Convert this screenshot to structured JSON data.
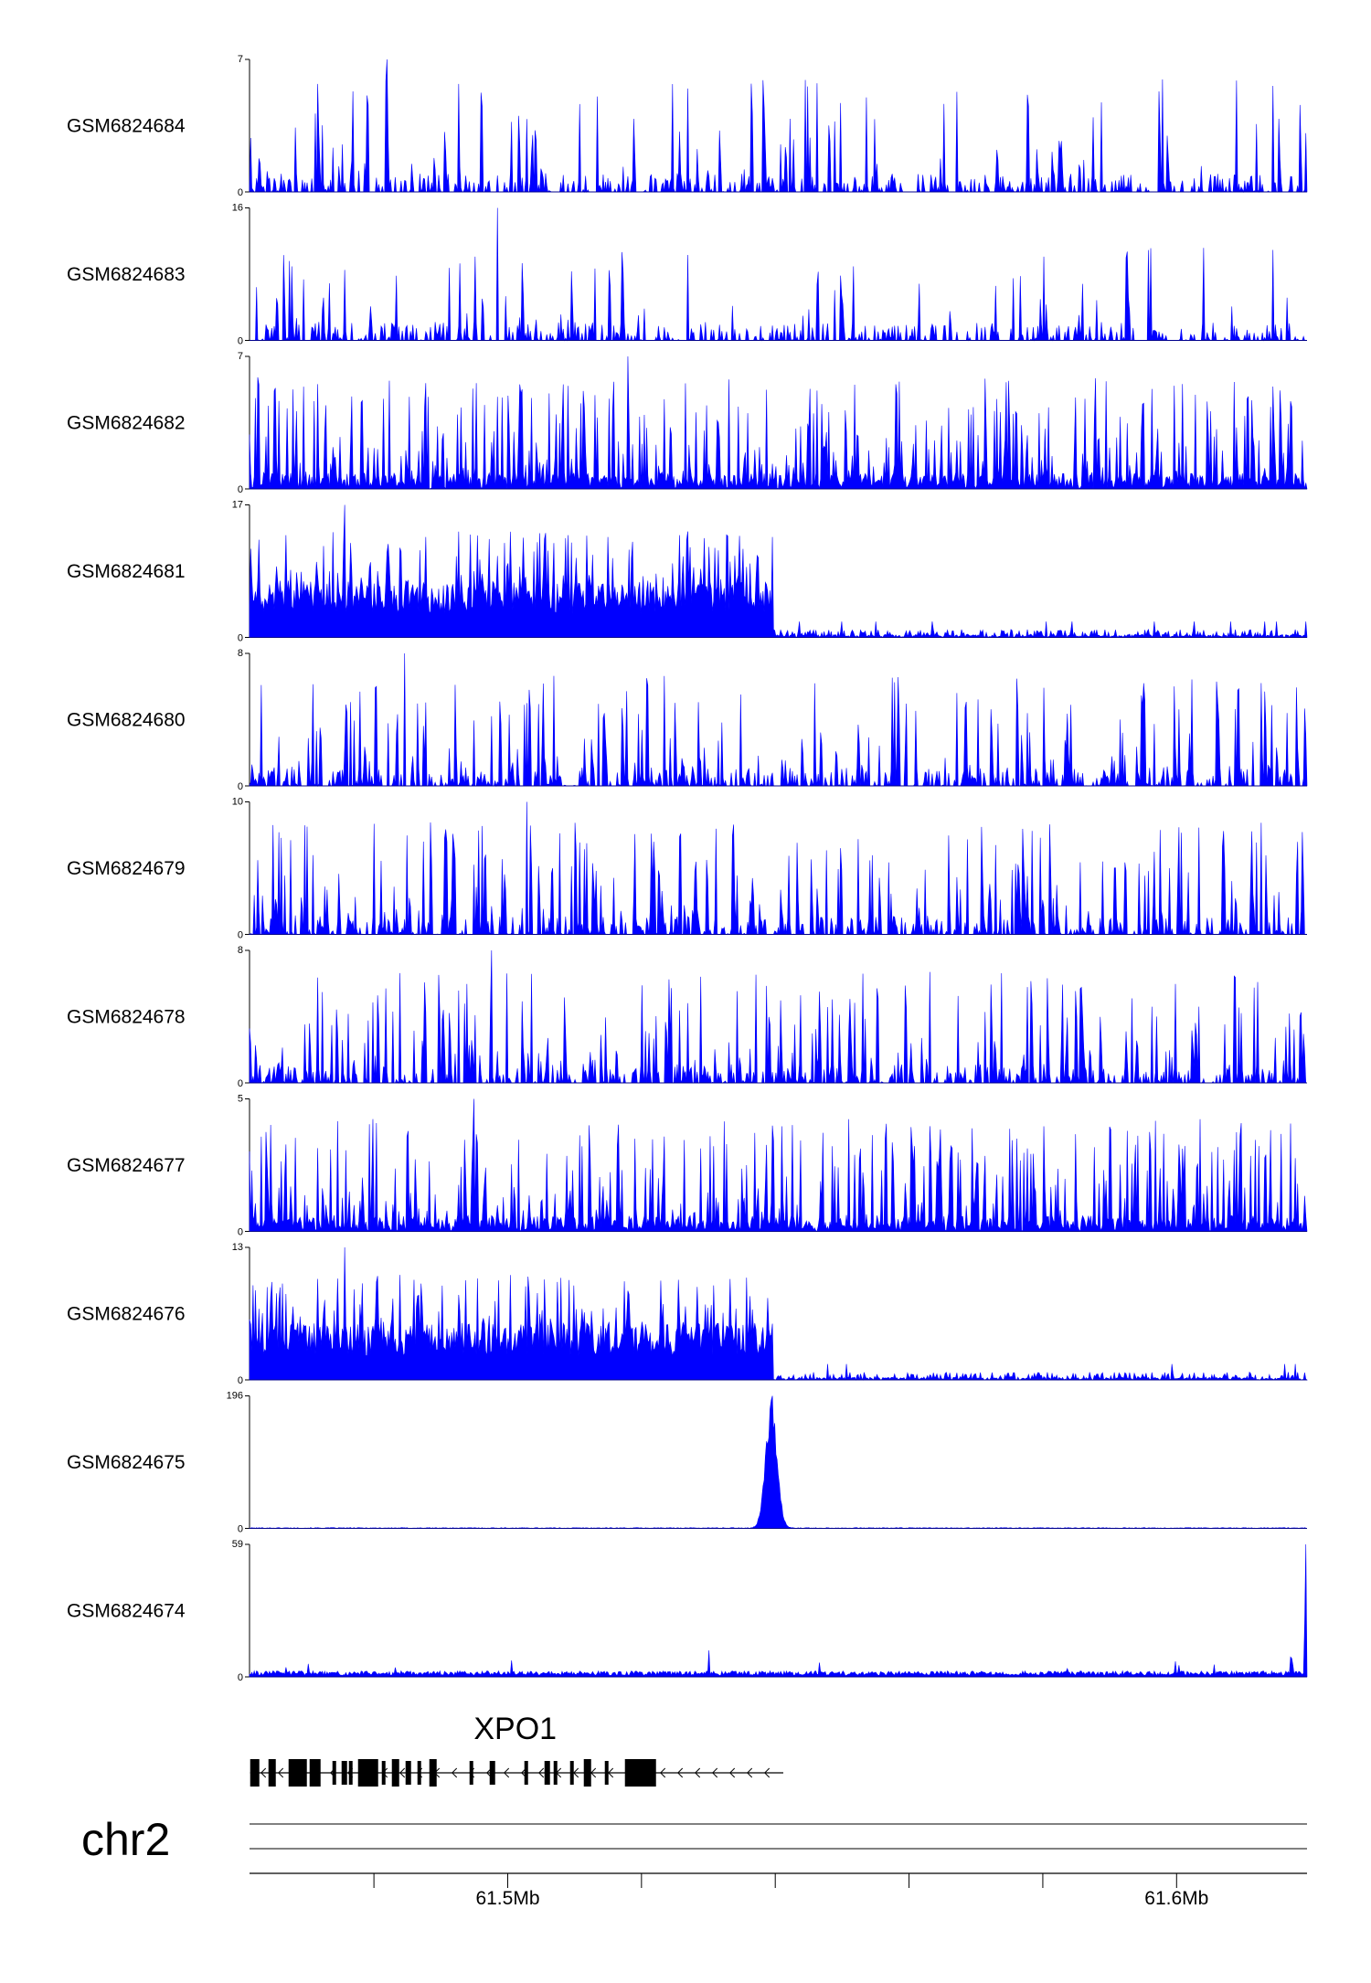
{
  "chart_data": {
    "type": "area",
    "x_unit": "Mb",
    "x_range_mb": [
      61.4614,
      61.6195
    ],
    "tracks": [
      {
        "name": "GSM6824684",
        "ymax": 7,
        "ymin": 0,
        "profile": "sparse",
        "density": 0.18,
        "peak_frac": 0.45,
        "seed": 11
      },
      {
        "name": "GSM6824683",
        "ymax": 16,
        "ymin": 0,
        "profile": "very_sparse",
        "density": 0.1,
        "peak_frac": 0.45,
        "seed": 23
      },
      {
        "name": "GSM6824682",
        "ymax": 7,
        "ymin": 0,
        "profile": "dense",
        "density": 0.4,
        "peak_frac": 0.35,
        "seed": 37
      },
      {
        "name": "GSM6824681",
        "ymax": 17,
        "ymin": 0,
        "profile": "gene_body",
        "seed": 41
      },
      {
        "name": "GSM6824680",
        "ymax": 8,
        "ymin": 0,
        "profile": "sparse",
        "density": 0.28,
        "peak_frac": 0.4,
        "seed": 53
      },
      {
        "name": "GSM6824679",
        "ymax": 10,
        "ymin": 0,
        "profile": "sparse",
        "density": 0.26,
        "peak_frac": 0.3,
        "seed": 67
      },
      {
        "name": "GSM6824678",
        "ymax": 8,
        "ymin": 0,
        "profile": "sparse",
        "density": 0.28,
        "peak_frac": 0.35,
        "seed": 71
      },
      {
        "name": "GSM6824677",
        "ymax": 5,
        "ymin": 0,
        "profile": "dense",
        "density": 0.45,
        "peak_frac": 0.4,
        "seed": 83
      },
      {
        "name": "GSM6824676",
        "ymax": 13,
        "ymin": 0,
        "profile": "gene_body",
        "seed": 97
      },
      {
        "name": "GSM6824675",
        "ymax": 196,
        "ymin": 0,
        "profile": "promoter_peak",
        "peak_x_mb": 61.5395,
        "seed": 101
      },
      {
        "name": "GSM6824674",
        "ymax": 59,
        "ymin": 0,
        "profile": "end_peak",
        "peak_x_mb": 61.6192,
        "seed": 113
      }
    ],
    "gene": {
      "name": "XPO1",
      "start_mb": 61.4615,
      "end_mb": 61.5412,
      "strand": "-"
    },
    "chromosome": "chr2",
    "ticks_mb": [
      61.46,
      61.48,
      61.5,
      61.52,
      61.54,
      61.56,
      61.58,
      61.6,
      61.62
    ],
    "tick_labels": [
      {
        "mb": 61.5,
        "text": "61.5Mb"
      },
      {
        "mb": 61.6,
        "text": "61.6Mb"
      }
    ],
    "colors": {
      "signal": "#0000ff",
      "gene": "#000000",
      "axis": "#000000"
    }
  }
}
